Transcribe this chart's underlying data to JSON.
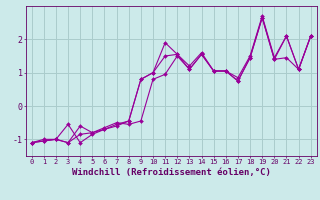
{
  "title": "",
  "xlabel": "Windchill (Refroidissement éolien,°C)",
  "ylabel": "",
  "bg_color": "#cceaea",
  "grid_color": "#aacccc",
  "line_color": "#990099",
  "xlim": [
    -0.5,
    23.5
  ],
  "ylim": [
    -1.5,
    3.0
  ],
  "xticks": [
    0,
    1,
    2,
    3,
    4,
    5,
    6,
    7,
    8,
    9,
    10,
    11,
    12,
    13,
    14,
    15,
    16,
    17,
    18,
    19,
    20,
    21,
    22,
    23
  ],
  "yticks": [
    -1,
    0,
    1,
    2
  ],
  "line1_y": [
    -1.1,
    -1.05,
    -1.0,
    -0.55,
    -1.1,
    -0.85,
    -0.7,
    -0.55,
    -0.45,
    0.8,
    1.0,
    1.9,
    1.55,
    1.2,
    1.6,
    1.05,
    1.05,
    0.85,
    1.5,
    2.7,
    1.45,
    2.1,
    1.1,
    2.1
  ],
  "line2_y": [
    -1.1,
    -1.0,
    -1.0,
    -1.1,
    -0.6,
    -0.8,
    -0.65,
    -0.5,
    -0.55,
    -0.45,
    0.8,
    0.95,
    1.5,
    1.1,
    1.55,
    1.05,
    1.05,
    0.75,
    1.45,
    2.65,
    1.4,
    1.45,
    1.1,
    2.1
  ],
  "line3_y": [
    -1.1,
    -1.05,
    -1.0,
    -1.1,
    -0.85,
    -0.8,
    -0.7,
    -0.6,
    -0.45,
    0.8,
    1.0,
    1.5,
    1.55,
    1.1,
    1.55,
    1.05,
    1.05,
    0.75,
    1.45,
    2.65,
    1.4,
    2.1,
    1.1,
    2.1
  ],
  "axis_color": "#660066",
  "tick_fontsize": 5.0,
  "xlabel_fontsize": 6.5,
  "marker_size": 2.0,
  "linewidth": 0.8
}
